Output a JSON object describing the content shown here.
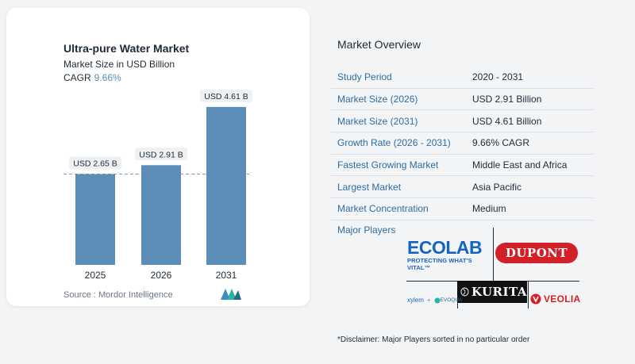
{
  "chart_data": {
    "type": "bar",
    "title": "Ultra-pure Water Market",
    "subtitle": "Market Size in USD Billion",
    "cagr_label": "CAGR",
    "cagr_value": "9.66%",
    "categories": [
      "2025",
      "2026",
      "2031"
    ],
    "values": [
      2.65,
      2.91,
      4.61
    ],
    "data_labels": [
      "USD 2.65 B",
      "USD 2.91 B",
      "USD 4.61 B"
    ],
    "ylim": [
      0,
      5
    ],
    "reference_line": 2.65,
    "bar_color": "#5b8db8",
    "label_bg": "#eef0f2",
    "source": "Source :  Mordor Intelligence"
  },
  "overview": {
    "title": "Market Overview",
    "rows": [
      {
        "label": "Study Period",
        "value": "2020 - 2031"
      },
      {
        "label": "Market Size (2026)",
        "value": "USD 2.91 Billion"
      },
      {
        "label": "Market Size (2031)",
        "value": "USD 4.61 Billion"
      },
      {
        "label": "Growth Rate (2026 - 2031)",
        "value": "9.66% CAGR"
      },
      {
        "label": "Fastest Growing Market",
        "value": "Middle East and Africa"
      },
      {
        "label": "Largest Market",
        "value": "Asia Pacific"
      },
      {
        "label": "Market Concentration",
        "value": "Medium"
      }
    ],
    "players_title": "Major Players",
    "players": {
      "ecolab_name": "ECOLAB",
      "ecolab_tag": "PROTECTING WHAT'S VITAL™",
      "dupont": "DUPONT",
      "kurita": "KURITA",
      "xylem": "xylem",
      "plus": "+",
      "evoqua": "EVOQUA",
      "veolia": "VEOLIA"
    },
    "disclaimer": "*Disclaimer: Major Players sorted in no particular order"
  },
  "colors": {
    "accent_blue": "#2e6da0",
    "bar_blue": "#5b8db8",
    "ecolab_blue": "#1565c0",
    "dupont_red": "#d32028"
  }
}
